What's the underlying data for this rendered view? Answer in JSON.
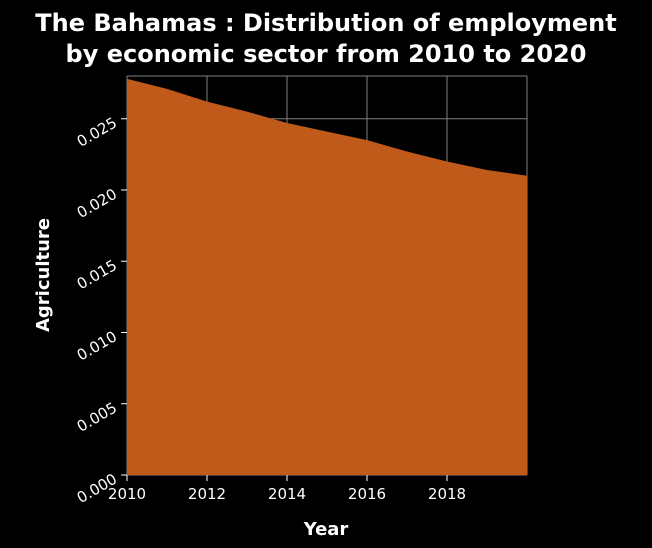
{
  "chart_data": {
    "type": "area",
    "title_lines": [
      "The Bahamas : Distribution of employment",
      "by economic sector from 2010 to 2020"
    ],
    "xlabel": "Year",
    "ylabel": "Agriculture",
    "x": [
      2010,
      2011,
      2012,
      2013,
      2014,
      2015,
      2016,
      2017,
      2018,
      2019,
      2020
    ],
    "series": [
      {
        "values": [
          0.0278,
          0.0271,
          0.0262,
          0.0255,
          0.0247,
          0.0241,
          0.0235,
          0.0227,
          0.022,
          0.0214,
          0.021
        ]
      }
    ],
    "xlim": [
      2010,
      2020
    ],
    "ylim": [
      0,
      0.028
    ],
    "x_ticks": [
      2010,
      2012,
      2014,
      2016,
      2018
    ],
    "x_tick_labels": [
      "2010",
      "2012",
      "2014",
      "2016",
      "2018"
    ],
    "y_ticks": [
      0,
      0.005,
      0.01,
      0.015,
      0.02,
      0.025
    ],
    "y_tick_labels": [
      "0.000",
      "0.005",
      "0.010",
      "0.015",
      "0.020",
      "0.025"
    ],
    "grid": true,
    "fill_color": "#c05a1a",
    "background_color": "#000000",
    "grid_color": "#808080"
  }
}
